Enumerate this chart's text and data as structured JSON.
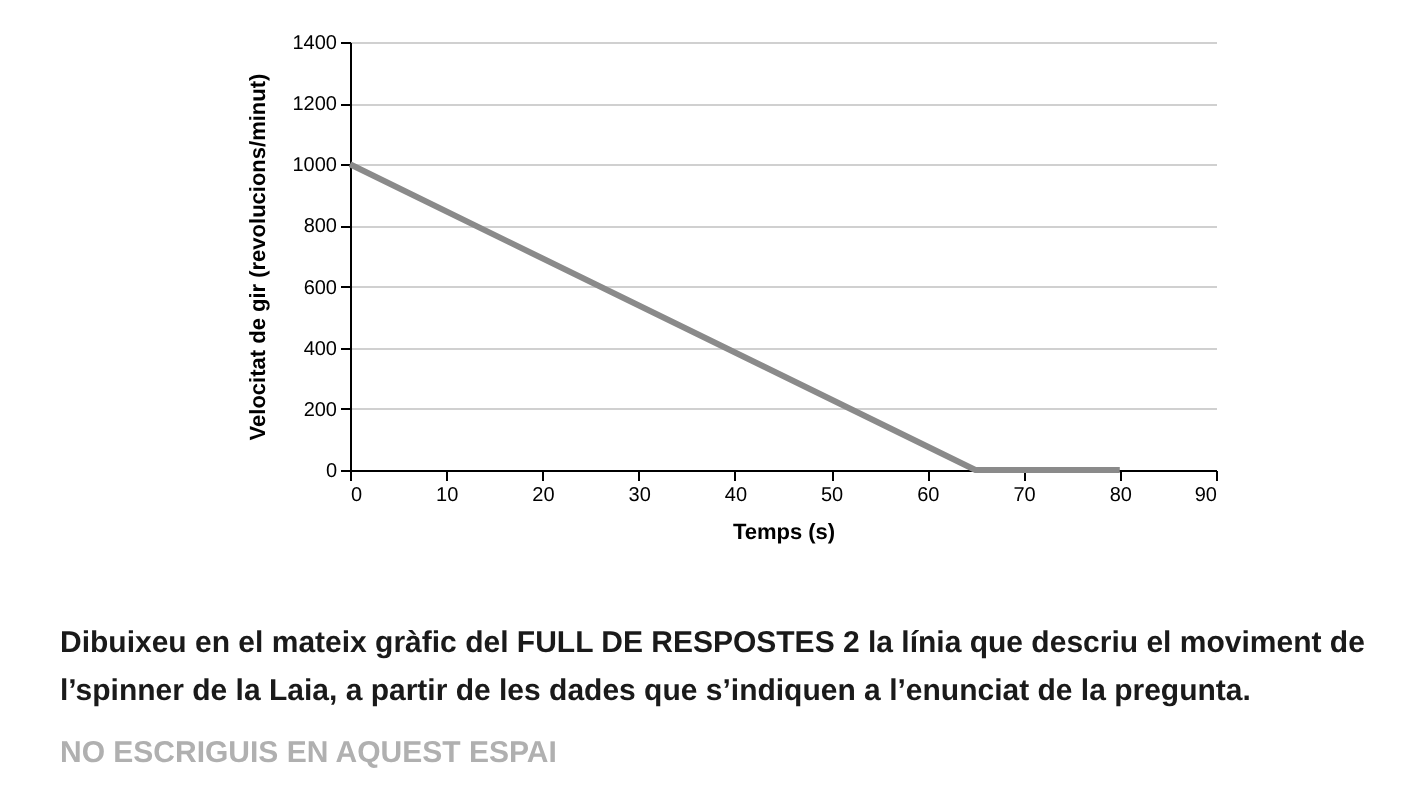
{
  "chart_data": {
    "type": "line",
    "xlabel": "Temps (s)",
    "ylabel": "Velocitat de gir (revolucions/minut)",
    "x": [
      0,
      65,
      80
    ],
    "series": [
      {
        "color": "#8a8a8a",
        "values": [
          1000,
          0,
          0
        ]
      }
    ],
    "xlim": [
      0,
      90
    ],
    "xticks": [
      0,
      10,
      20,
      30,
      40,
      50,
      60,
      70,
      80,
      90
    ],
    "ylim": [
      0,
      1400
    ],
    "yticks": [
      0,
      200,
      400,
      600,
      800,
      1000,
      1200,
      1400
    ],
    "grid": "y",
    "marker": "none",
    "line_style": "solid",
    "annotations": [
      "Dibuixeu en el mateix gràfic del FULL DE RESPOSTES 2 la línia que descriu el moviment de l’spinner de la Laia, a partir de les dades que s’indiquen a l’enunciat de la pregunta.",
      "NO ESCRIGUIS EN AQUEST ESPAI"
    ]
  }
}
